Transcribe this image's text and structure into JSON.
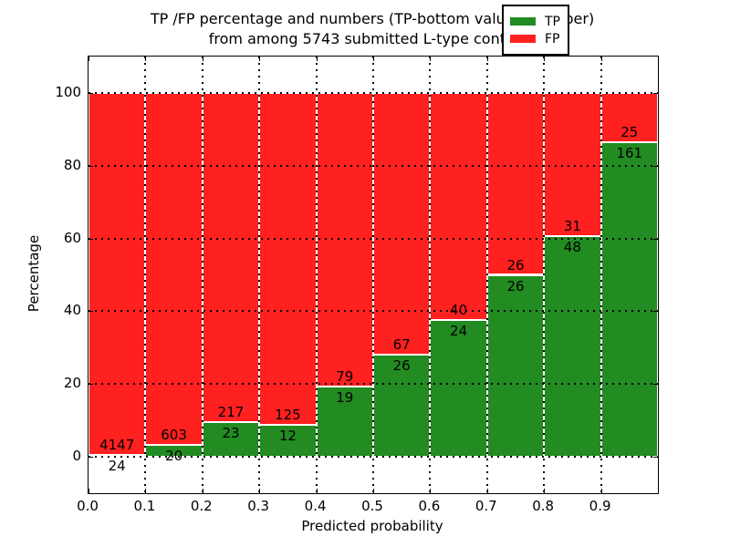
{
  "title": {
    "line1": "TP /FP percentage and numbers (TP-bottom value, FP-upper)",
    "line2": "from among 5743 submitted L-type contacts"
  },
  "axes": {
    "xlabel": "Predicted probability",
    "ylabel": "Percentage",
    "yticks": [
      0,
      20,
      40,
      60,
      80,
      100
    ],
    "xticks": [
      "0.0",
      "0.1",
      "0.2",
      "0.3",
      "0.4",
      "0.5",
      "0.6",
      "0.7",
      "0.8",
      "0.9"
    ],
    "xtick_values": [
      0.0,
      0.1,
      0.2,
      0.3,
      0.4,
      0.5,
      0.6,
      0.7,
      0.8,
      0.9
    ]
  },
  "legend": {
    "items": [
      {
        "label": "TP",
        "color": "#228b22"
      },
      {
        "label": "FP",
        "color": "#ff2020"
      }
    ]
  },
  "colors": {
    "tp": "#228b22",
    "fp": "#ff2020",
    "grid": "#000000",
    "background": "#ffffff"
  },
  "chart_data": {
    "type": "bar",
    "stacked": true,
    "normalized_to_percent": true,
    "title": "TP /FP percentage and numbers (TP-bottom value, FP-upper) from among 5743 submitted L-type contacts",
    "xlabel": "Predicted probability",
    "ylabel": "Percentage",
    "xlim": [
      0.0,
      1.0
    ],
    "ylim": [
      -10,
      110
    ],
    "grid": true,
    "legend_position": "upper right",
    "total_contacts": 5743,
    "bin_width": 0.1,
    "bin_starts": [
      0.0,
      0.1,
      0.2,
      0.3,
      0.4,
      0.5,
      0.6,
      0.7,
      0.8,
      0.9
    ],
    "series": [
      {
        "name": "TP",
        "color": "#228b22",
        "counts": [
          24,
          20,
          23,
          12,
          19,
          26,
          24,
          26,
          48,
          161
        ],
        "percent": [
          0.58,
          3.21,
          9.58,
          8.76,
          19.39,
          27.96,
          37.5,
          50.0,
          60.76,
          86.56
        ]
      },
      {
        "name": "FP",
        "color": "#ff2020",
        "counts": [
          4147,
          603,
          217,
          125,
          79,
          67,
          40,
          26,
          31,
          25
        ],
        "percent": [
          99.42,
          96.79,
          90.42,
          91.24,
          80.61,
          72.04,
          62.5,
          50.0,
          39.24,
          13.44
        ]
      }
    ]
  }
}
